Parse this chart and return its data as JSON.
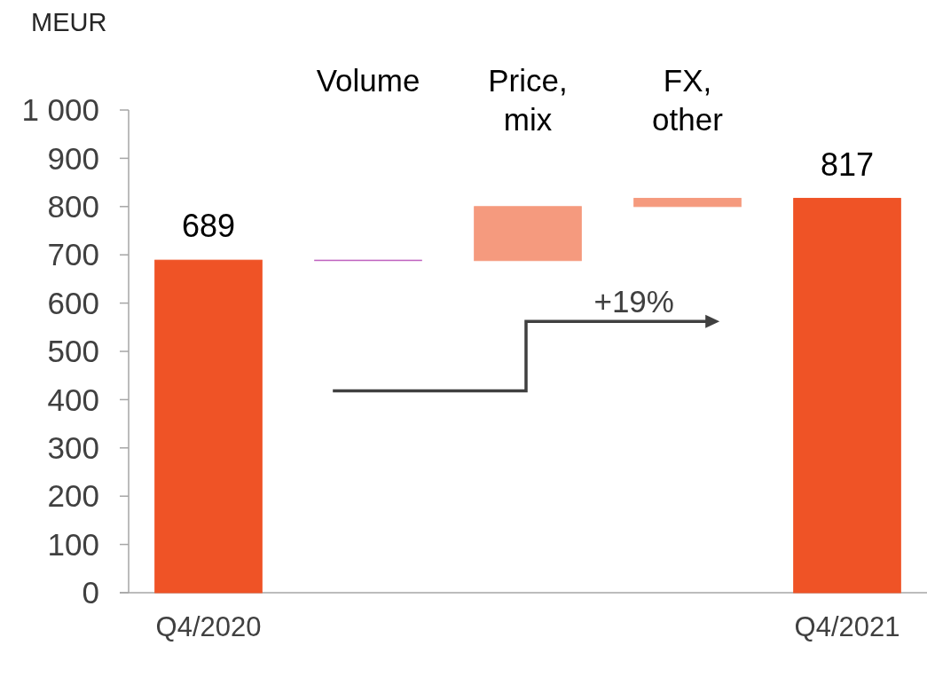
{
  "chart_data": {
    "type": "bar",
    "ylabel": "MEUR",
    "categories": [
      "Q4/2020",
      "Volume",
      "Price, mix",
      "FX, other",
      "Q4/2021"
    ],
    "values": [
      689,
      -1,
      112,
      17,
      817
    ],
    "base": [
      0,
      689,
      688,
      800,
      0
    ],
    "colors": [
      "#ef5326",
      "#bf64bf",
      "#f59a7e",
      "#f59a7e",
      "#ef5326"
    ],
    "value_labels": [
      "689",
      null,
      null,
      null,
      "817"
    ],
    "ylim": [
      0,
      1000
    ],
    "yticks": [
      0,
      100,
      200,
      300,
      400,
      500,
      600,
      700,
      800,
      900,
      {
        "value": 1000,
        "label": "1 000"
      }
    ],
    "annotations": [
      "+19%"
    ]
  }
}
